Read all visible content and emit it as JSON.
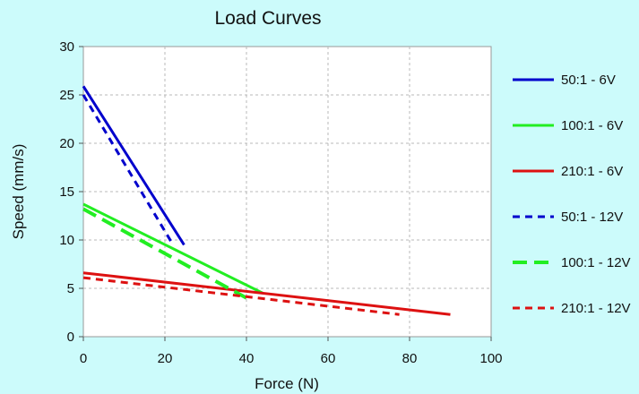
{
  "chart_data": {
    "type": "line",
    "title": "Load Curves",
    "xlabel": "Force (N)",
    "ylabel": "Speed  (mm/s)",
    "xlim": [
      0,
      100
    ],
    "ylim": [
      0,
      30
    ],
    "xticks": [
      0,
      20,
      40,
      60,
      80,
      100
    ],
    "yticks": [
      0,
      5,
      10,
      15,
      20,
      25,
      30
    ],
    "grid": true,
    "legend_position": "right",
    "series": [
      {
        "name": "50:1  - 6V",
        "color": "#0000cc",
        "style": "solid",
        "x": [
          0,
          24.7
        ],
        "y": [
          25.9,
          9.5
        ]
      },
      {
        "name": "100:1 - 6V",
        "color": "#22ee22",
        "style": "solid",
        "x": [
          0,
          44
        ],
        "y": [
          13.7,
          4.5
        ]
      },
      {
        "name": "210:1 - 6V",
        "color": "#dd1111",
        "style": "solid",
        "x": [
          0,
          90
        ],
        "y": [
          6.6,
          2.3
        ]
      },
      {
        "name": "50:1  - 12V",
        "color": "#0000cc",
        "style": "dashed",
        "x": [
          0,
          22
        ],
        "y": [
          25,
          9.5
        ]
      },
      {
        "name": "100:1 - 12V",
        "color": "#22ee22",
        "style": "dashed",
        "x": [
          0,
          40
        ],
        "y": [
          13.2,
          4.0
        ]
      },
      {
        "name": "210:1 - 12V",
        "color": "#dd1111",
        "style": "dashed",
        "x": [
          0,
          77.5
        ],
        "y": [
          6.1,
          2.3
        ]
      }
    ]
  }
}
